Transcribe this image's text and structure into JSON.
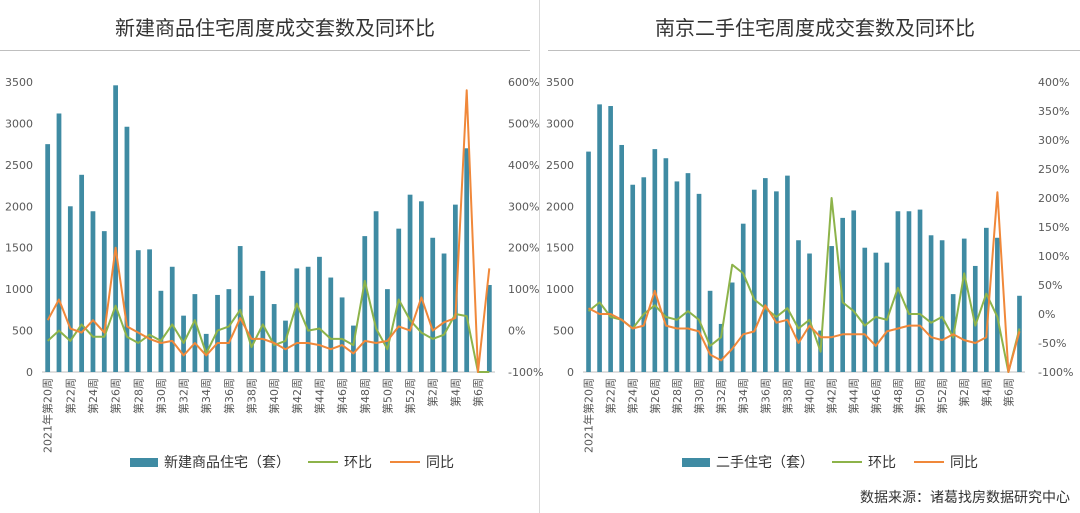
{
  "colors": {
    "bar": "#3f8ba3",
    "mom": "#8db34a",
    "yoy": "#f0883a"
  },
  "source": "数据来源：诸葛找房数据研究中心",
  "chart_data": [
    {
      "type": "bar",
      "title": "新建商品住宅周度成交套数及同环比",
      "categories": [
        "2021年第20周",
        "",
        "第22周",
        "",
        "第24周",
        "",
        "第26周",
        "",
        "第28周",
        "",
        "第30周",
        "",
        "第32周",
        "",
        "第34周",
        "",
        "第36周",
        "",
        "第38周",
        "",
        "第40周",
        "",
        "第42周",
        "",
        "第44周",
        "",
        "第46周",
        "",
        "第48周",
        "",
        "第50周",
        "",
        "第52周",
        "",
        "第2周",
        "",
        "第4周",
        "",
        "第6周",
        ""
      ],
      "ylim": [
        0,
        3500
      ],
      "y2lim": [
        -100,
        600
      ],
      "yticks": [
        "0",
        "500",
        "1000",
        "1500",
        "2000",
        "2500",
        "3000",
        "3500"
      ],
      "y2ticks": [
        "-100%",
        "0%",
        "100%",
        "200%",
        "300%",
        "400%",
        "500%",
        "600%"
      ],
      "legend": [
        "新建商品住宅（套）",
        "环比",
        "同比"
      ],
      "series": [
        {
          "name": "新建商品住宅（套）",
          "axis": "left",
          "values": [
            2750,
            3120,
            2000,
            2380,
            1940,
            1700,
            3460,
            2960,
            1470,
            1480,
            980,
            1270,
            680,
            940,
            460,
            930,
            1000,
            1520,
            920,
            1220,
            820,
            620,
            1250,
            1270,
            1390,
            1140,
            900,
            560,
            1640,
            1940,
            1000,
            1730,
            2140,
            2060,
            1620,
            1430,
            2020,
            2700,
            0,
            1050
          ]
        },
        {
          "name": "环比",
          "axis": "right",
          "values": [
            -25,
            0,
            -25,
            15,
            -15,
            -15,
            60,
            -15,
            -30,
            -10,
            -25,
            15,
            -30,
            25,
            -55,
            0,
            10,
            50,
            -40,
            15,
            -35,
            -25,
            65,
            0,
            5,
            -20,
            -20,
            -35,
            120,
            5,
            -45,
            75,
            25,
            -5,
            -20,
            -10,
            40,
            35,
            -100,
            -100
          ]
        },
        {
          "name": "同比",
          "axis": "right",
          "values": [
            25,
            75,
            5,
            -5,
            25,
            -5,
            200,
            10,
            -5,
            -20,
            -30,
            -25,
            -60,
            -30,
            -60,
            -30,
            -30,
            30,
            -20,
            -20,
            -30,
            -45,
            -30,
            -30,
            -35,
            -45,
            -35,
            -55,
            -25,
            -30,
            -25,
            10,
            0,
            80,
            0,
            20,
            30,
            580,
            -100,
            150
          ]
        }
      ]
    },
    {
      "type": "bar",
      "title": "南京二手住宅周度成交套数及同环比",
      "categories": [
        "2021年第20周",
        "",
        "第22周",
        "",
        "第24周",
        "",
        "第26周",
        "",
        "第28周",
        "",
        "第30周",
        "",
        "第32周",
        "",
        "第34周",
        "",
        "第36周",
        "",
        "第38周",
        "",
        "第40周",
        "",
        "第42周",
        "",
        "第44周",
        "",
        "第46周",
        "",
        "第48周",
        "",
        "第50周",
        "",
        "第52周",
        "",
        "第2周",
        "",
        "第4周",
        "",
        "第6周",
        ""
      ],
      "ylim": [
        0,
        3500
      ],
      "y2lim": [
        -100,
        400
      ],
      "yticks": [
        "0",
        "500",
        "1000",
        "1500",
        "2000",
        "2500",
        "3000",
        "3500"
      ],
      "y2ticks": [
        "-100%",
        "-50%",
        "0%",
        "50%",
        "100%",
        "150%",
        "200%",
        "250%",
        "300%",
        "350%",
        "400%"
      ],
      "legend": [
        "二手住宅（套）",
        "环比",
        "同比"
      ],
      "series": [
        {
          "name": "二手住宅（套）",
          "axis": "left",
          "values": [
            2660,
            3230,
            3210,
            2740,
            2260,
            2350,
            2690,
            2580,
            2300,
            2400,
            2150,
            980,
            580,
            1080,
            1790,
            2200,
            2340,
            2180,
            2370,
            1590,
            1430,
            500,
            1520,
            1860,
            1950,
            1500,
            1440,
            1320,
            1940,
            1940,
            1960,
            1650,
            1590,
            940,
            1610,
            1280,
            1740,
            1620,
            0,
            920
          ]
        },
        {
          "name": "环比",
          "axis": "right",
          "values": [
            5,
            20,
            -5,
            -10,
            -25,
            0,
            15,
            -5,
            -10,
            5,
            -10,
            -55,
            -40,
            85,
            70,
            25,
            10,
            -5,
            10,
            -25,
            -10,
            -65,
            200,
            20,
            5,
            -20,
            -5,
            -10,
            45,
            0,
            0,
            -15,
            -5,
            -40,
            70,
            -20,
            35,
            -5,
            -100,
            -25
          ]
        },
        {
          "name": "同比",
          "axis": "right",
          "values": [
            10,
            0,
            0,
            -10,
            -25,
            -20,
            40,
            -20,
            -25,
            -25,
            -30,
            -70,
            -80,
            -60,
            -35,
            -30,
            15,
            -15,
            -10,
            -50,
            -20,
            -40,
            -40,
            -35,
            -35,
            -35,
            -55,
            -30,
            -25,
            -20,
            -20,
            -40,
            -45,
            -35,
            -45,
            -50,
            -40,
            210,
            -100,
            -30
          ]
        }
      ]
    }
  ]
}
